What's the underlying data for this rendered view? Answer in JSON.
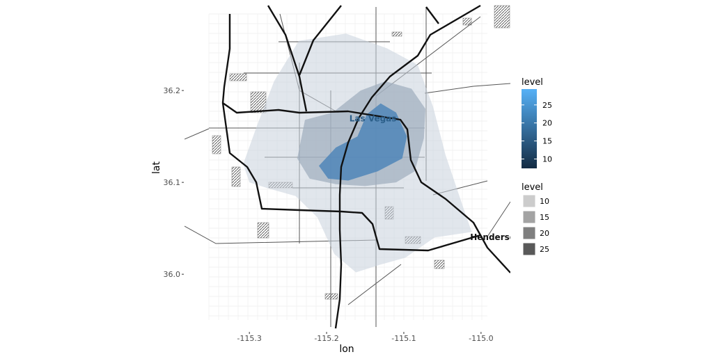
{
  "chart_data": {
    "type": "map-density",
    "xlabel": "lon",
    "ylabel": "lat",
    "x_ticks": [
      {
        "value": -115.3,
        "label": "-115.3"
      },
      {
        "value": -115.2,
        "label": "-115.2"
      },
      {
        "value": -115.1,
        "label": "-115.1"
      },
      {
        "value": -115.0,
        "label": "-115.0"
      }
    ],
    "y_ticks": [
      {
        "value": 36.2,
        "label": "36.2"
      },
      {
        "value": 36.1,
        "label": "36.1"
      },
      {
        "value": 36.0,
        "label": "36.0"
      }
    ],
    "xlim": [
      -115.384,
      -114.962
    ],
    "ylim": [
      35.938,
      36.294
    ],
    "places": [
      {
        "name": "Las Vegas",
        "lon": -115.14,
        "lat": 36.169,
        "color": "#2c5f8a"
      },
      {
        "name": "Henderson",
        "lon": -114.981,
        "lat": 36.04,
        "color": "#111111"
      }
    ],
    "density_levels": [
      {
        "level": 10,
        "fill": "#c9d2dc",
        "opacity": 0.55,
        "ring": [
          [
            -115.308,
            36.12
          ],
          [
            -115.29,
            36.162
          ],
          [
            -115.268,
            36.21
          ],
          [
            -115.236,
            36.254
          ],
          [
            -115.175,
            36.262
          ],
          [
            -115.122,
            36.246
          ],
          [
            -115.082,
            36.228
          ],
          [
            -115.062,
            36.182
          ],
          [
            -115.046,
            36.13
          ],
          [
            -115.022,
            36.07
          ],
          [
            -115.012,
            36.046
          ],
          [
            -115.06,
            36.04
          ],
          [
            -115.098,
            36.018
          ],
          [
            -115.132,
            36.01
          ],
          [
            -115.162,
            36.002
          ],
          [
            -115.19,
            36.022
          ],
          [
            -115.212,
            36.062
          ],
          [
            -115.24,
            36.085
          ],
          [
            -115.278,
            36.094
          ],
          [
            -115.3,
            36.1
          ]
        ]
      },
      {
        "level": 15,
        "fill": "#9eadbe",
        "opacity": 0.7,
        "ring": [
          [
            -115.238,
            36.126
          ],
          [
            -115.228,
            36.168
          ],
          [
            -115.192,
            36.176
          ],
          [
            -115.156,
            36.2
          ],
          [
            -115.124,
            36.21
          ],
          [
            -115.09,
            36.202
          ],
          [
            -115.072,
            36.18
          ],
          [
            -115.074,
            36.148
          ],
          [
            -115.086,
            36.112
          ],
          [
            -115.11,
            36.1
          ],
          [
            -115.15,
            36.096
          ],
          [
            -115.188,
            36.098
          ],
          [
            -115.222,
            36.104
          ]
        ]
      },
      {
        "level": 20,
        "fill": "#4f86b8",
        "opacity": 0.85,
        "ring": [
          [
            -115.21,
            36.118
          ],
          [
            -115.188,
            36.138
          ],
          [
            -115.16,
            36.15
          ],
          [
            -115.148,
            36.174
          ],
          [
            -115.13,
            36.186
          ],
          [
            -115.11,
            36.176
          ],
          [
            -115.096,
            36.15
          ],
          [
            -115.102,
            36.126
          ],
          [
            -115.134,
            36.112
          ],
          [
            -115.172,
            36.102
          ],
          [
            -115.198,
            36.104
          ]
        ]
      }
    ],
    "legend_continuous": {
      "title": "level",
      "ticks": [
        {
          "value": 25,
          "label": "25"
        },
        {
          "value": 20,
          "label": "20"
        },
        {
          "value": 15,
          "label": "15"
        },
        {
          "value": 10,
          "label": "10"
        }
      ],
      "range": [
        7.4,
        29.4
      ],
      "color_low": "#132b43",
      "color_high": "#56b1f7"
    },
    "legend_discrete": {
      "title": "level",
      "items": [
        {
          "label": "10",
          "color": "#cccccc"
        },
        {
          "label": "15",
          "color": "#a3a3a3"
        },
        {
          "label": "20",
          "color": "#7f7f7f"
        },
        {
          "label": "25",
          "color": "#595959"
        }
      ]
    }
  }
}
